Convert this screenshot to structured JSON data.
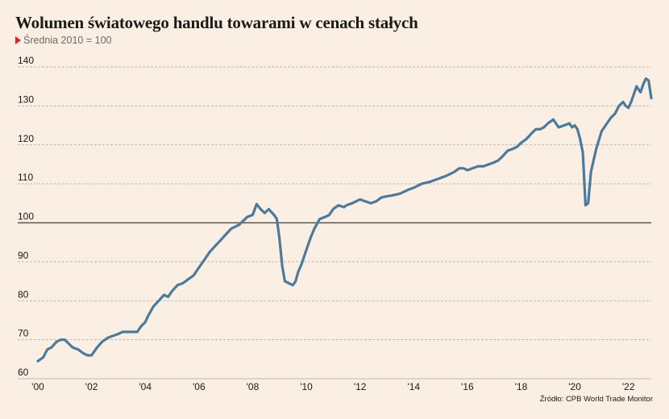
{
  "header": {
    "title": "Wolumen światowego handlu towarami w cenach stałych",
    "subtitle": "Średnia 2010 = 100",
    "source": "Źródło: CPB World Trade Monitor"
  },
  "colors": {
    "line": "#4a7b9d",
    "background": "#fbeee2",
    "accent": "#d7261e",
    "grid": "#aaaaaa",
    "reference": "#555555"
  },
  "chart_data": {
    "type": "line",
    "title": "Wolumen światowego handlu towarami w cenach stałych",
    "subtitle": "Średnia 2010 = 100",
    "xlabel": "",
    "ylabel": "",
    "xlim": [
      2000,
      2022.85
    ],
    "ylim": [
      60,
      140
    ],
    "grid": true,
    "reference_line": 100,
    "x_ticks": [
      {
        "value": 2000,
        "label": "'00"
      },
      {
        "value": 2002,
        "label": "'02"
      },
      {
        "value": 2004,
        "label": "'04"
      },
      {
        "value": 2006,
        "label": "'06"
      },
      {
        "value": 2008,
        "label": "'08"
      },
      {
        "value": 2010,
        "label": "'10"
      },
      {
        "value": 2012,
        "label": "'12"
      },
      {
        "value": 2014,
        "label": "'14"
      },
      {
        "value": 2016,
        "label": "'16"
      },
      {
        "value": 2018,
        "label": "'18"
      },
      {
        "value": 2020,
        "label": "'20"
      },
      {
        "value": 2022,
        "label": "'22"
      }
    ],
    "y_ticks": [
      60,
      70,
      80,
      90,
      100,
      110,
      120,
      130,
      140
    ],
    "series": [
      {
        "x": [
          2000.0,
          2000.2,
          2000.35,
          2000.5,
          2000.7,
          2000.85,
          2001.0,
          2001.15,
          2001.3,
          2001.5,
          2001.7,
          2001.85,
          2002.0,
          2002.2,
          2002.4,
          2002.6,
          2002.8,
          2003.0,
          2003.15,
          2003.3,
          2003.5,
          2003.7,
          2003.85,
          2004.0,
          2004.1,
          2004.3,
          2004.5,
          2004.7,
          2004.85,
          2005.0,
          2005.2,
          2005.4,
          2005.6,
          2005.8,
          2006.0,
          2006.2,
          2006.4,
          2006.6,
          2006.8,
          2007.0,
          2007.2,
          2007.5,
          2007.8,
          2008.0,
          2008.15,
          2008.3,
          2008.45,
          2008.6,
          2008.8,
          2008.9,
          2009.0,
          2009.1,
          2009.2,
          2009.35,
          2009.5,
          2009.6,
          2009.7,
          2009.8,
          2010.0,
          2010.15,
          2010.3,
          2010.5,
          2010.7,
          2010.85,
          2011.0,
          2011.2,
          2011.4,
          2011.5,
          2011.7,
          2011.85,
          2012.0,
          2012.2,
          2012.4,
          2012.6,
          2012.8,
          2013.0,
          2013.2,
          2013.5,
          2013.8,
          2014.0,
          2014.3,
          2014.6,
          2014.8,
          2015.0,
          2015.2,
          2015.5,
          2015.7,
          2015.85,
          2016.0,
          2016.2,
          2016.4,
          2016.6,
          2016.8,
          2017.0,
          2017.15,
          2017.3,
          2017.5,
          2017.7,
          2017.85,
          2018.0,
          2018.2,
          2018.4,
          2018.55,
          2018.7,
          2018.85,
          2019.0,
          2019.2,
          2019.4,
          2019.6,
          2019.8,
          2019.9,
          2020.0,
          2020.1,
          2020.2,
          2020.3,
          2020.4,
          2020.5,
          2020.6,
          2020.8,
          2021.0,
          2021.1,
          2021.2,
          2021.35,
          2021.5,
          2021.65,
          2021.8,
          2021.9,
          2022.0,
          2022.1,
          2022.2,
          2022.3,
          2022.45,
          2022.55,
          2022.65,
          2022.75,
          2022.85
        ],
        "y": [
          64.5,
          65.5,
          67.5,
          68.0,
          69.5,
          70.0,
          70.0,
          69.0,
          68.0,
          67.5,
          66.5,
          66.0,
          66.0,
          68.0,
          69.5,
          70.5,
          71.0,
          71.5,
          72.0,
          72.0,
          72.0,
          72.0,
          73.5,
          74.5,
          76.0,
          78.5,
          80.0,
          81.5,
          81.0,
          82.5,
          84.0,
          84.5,
          85.5,
          86.5,
          88.5,
          90.5,
          92.5,
          94.0,
          95.5,
          97.0,
          98.5,
          99.5,
          101.5,
          102.0,
          104.8,
          103.5,
          102.5,
          103.5,
          102.0,
          101.0,
          96.0,
          89.0,
          85.0,
          84.5,
          84.0,
          85.0,
          87.5,
          89.0,
          93.0,
          96.0,
          98.5,
          101.0,
          101.5,
          102.0,
          103.5,
          104.5,
          104.0,
          104.5,
          105.0,
          105.5,
          106.0,
          105.5,
          105.0,
          105.5,
          106.5,
          106.8,
          107.0,
          107.5,
          108.5,
          109.0,
          110.0,
          110.5,
          111.0,
          111.5,
          112.0,
          113.0,
          114.0,
          114.0,
          113.5,
          114.0,
          114.5,
          114.5,
          115.0,
          115.5,
          116.0,
          117.0,
          118.5,
          119.0,
          119.5,
          120.5,
          121.5,
          123.0,
          124.0,
          124.0,
          124.5,
          125.5,
          126.5,
          124.5,
          125.0,
          125.5,
          124.5,
          125.0,
          124.0,
          121.5,
          118.0,
          104.5,
          105.0,
          113.0,
          119.0,
          123.5,
          124.5,
          125.5,
          127.0,
          128.0,
          130.0,
          131.0,
          130.0,
          129.5,
          131.0,
          133.0,
          135.0,
          133.5,
          135.5,
          137.0,
          136.5,
          132.0
        ]
      }
    ]
  }
}
